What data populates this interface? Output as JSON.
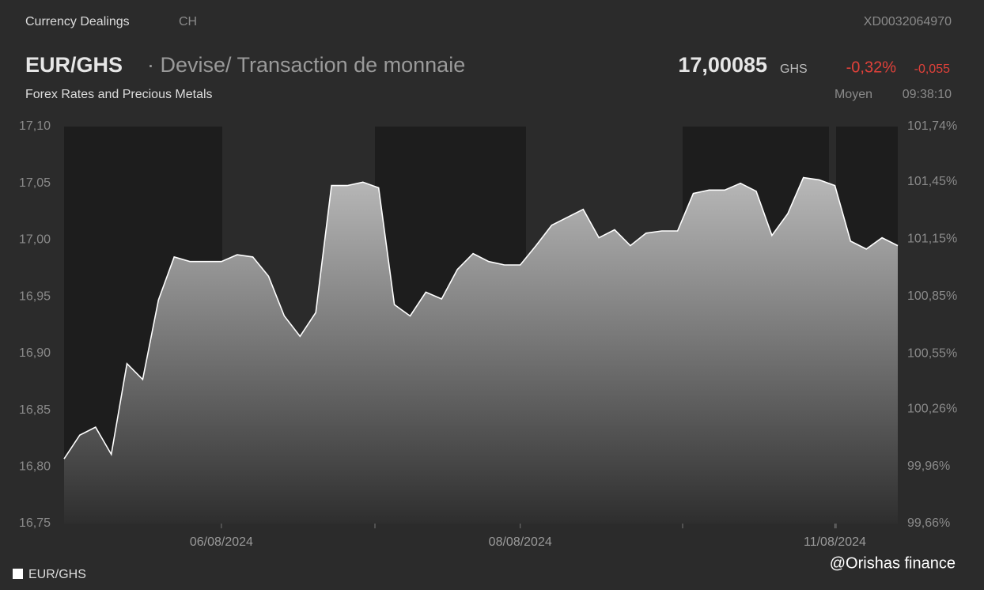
{
  "header": {
    "source": "Currency Dealings",
    "country": "CH",
    "isin": "XD0032064970",
    "pair": "EUR/GHS",
    "description": "· Devise/ Transaction de monnaie",
    "price": "17,00085",
    "currency": "GHS",
    "change_pct": "-0,32%",
    "change_abs": "-0,055",
    "subtitle": "Forex Rates and Precious Metals",
    "price_type": "Moyen",
    "time": "09:38:10",
    "credit": "@Orishas finance"
  },
  "chart_data": {
    "type": "area",
    "categories": [
      null,
      null,
      null,
      null,
      null,
      null,
      null,
      null,
      null,
      null,
      "06/08/2024",
      null,
      null,
      null,
      null,
      null,
      null,
      null,
      null,
      null,
      null,
      null,
      null,
      null,
      null,
      null,
      null,
      null,
      null,
      "08/08/2024",
      null,
      null,
      null,
      null,
      null,
      null,
      null,
      null,
      null,
      null,
      null,
      null,
      null,
      null,
      null,
      null,
      null,
      null,
      null,
      "11/08/2024",
      null,
      null,
      null,
      null
    ],
    "series": [
      {
        "name": "EUR/GHS",
        "color": "#ffffff",
        "values": [
          16.807,
          16.828,
          16.835,
          16.811,
          16.891,
          16.877,
          16.947,
          16.985,
          16.981,
          16.981,
          16.981,
          16.987,
          16.985,
          16.968,
          16.933,
          16.915,
          16.936,
          17.048,
          17.048,
          17.051,
          17.046,
          16.943,
          16.933,
          16.954,
          16.948,
          16.974,
          16.988,
          16.981,
          16.978,
          16.978,
          16.995,
          17.013,
          17.02,
          17.027,
          17.002,
          17.009,
          16.995,
          17.006,
          17.008,
          17.008,
          17.041,
          17.044,
          17.044,
          17.05,
          17.043,
          17.004,
          17.023,
          17.055,
          17.053,
          17.048,
          16.999,
          16.992,
          17.002,
          16.995
        ]
      }
    ],
    "ylim": [
      16.75,
      17.1
    ],
    "yticks": [
      {
        "value": 16.75,
        "label": "16,75"
      },
      {
        "value": 16.8,
        "label": "16,80"
      },
      {
        "value": 16.85,
        "label": "16,85"
      },
      {
        "value": 16.9,
        "label": "16,90"
      },
      {
        "value": 16.95,
        "label": "16,95"
      },
      {
        "value": 17.0,
        "label": "17,00"
      },
      {
        "value": 17.05,
        "label": "17,05"
      },
      {
        "value": 17.1,
        "label": "17,10"
      }
    ],
    "y2lim": [
      99.66,
      101.74
    ],
    "y2ticks": [
      {
        "value": 99.66,
        "label": "99,66%"
      },
      {
        "value": 99.96,
        "label": "99,96%"
      },
      {
        "value": 100.26,
        "label": "100,26%"
      },
      {
        "value": 100.55,
        "label": "100,55%"
      },
      {
        "value": 100.85,
        "label": "100,85%"
      },
      {
        "value": 101.15,
        "label": "101,15%"
      },
      {
        "value": 101.45,
        "label": "101,45%"
      },
      {
        "value": 101.74,
        "label": "101,74%"
      }
    ],
    "grid": false
  }
}
